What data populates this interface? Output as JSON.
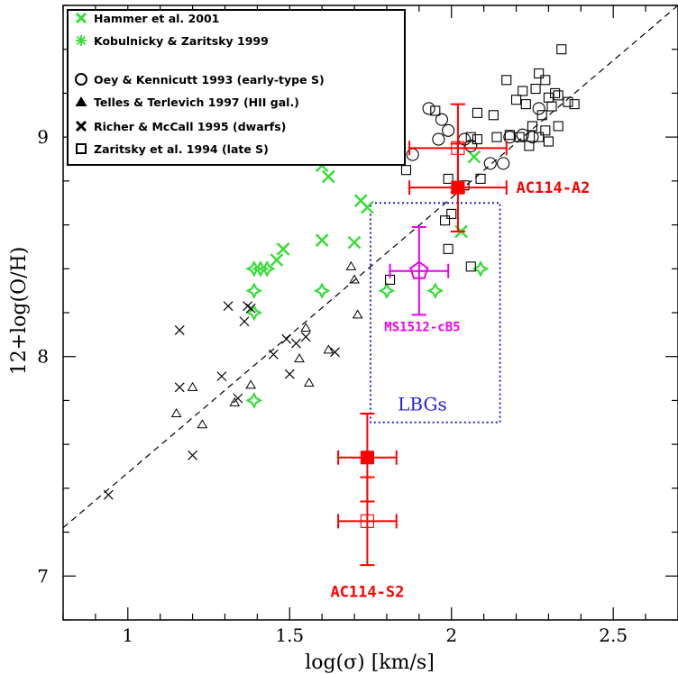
{
  "chart_data": {
    "type": "scatter",
    "xlabel": "log(σ) [km/s]",
    "ylabel": "12+log(O/H)",
    "xlim": [
      0.8,
      2.7
    ],
    "ylim": [
      6.8,
      9.6
    ],
    "xticks": [
      1,
      1.5,
      2,
      2.5
    ],
    "xtick_labels": [
      "1",
      "1.5",
      "2",
      "2.5"
    ],
    "yticks": [
      7,
      8,
      9
    ],
    "ytick_labels": [
      "7",
      "8",
      "9"
    ],
    "legend": [
      {
        "label": "Hammer et al. 2001",
        "marker": "x-bold",
        "color": "#33dd33"
      },
      {
        "label": "Kobulnicky & Zaritsky 1999",
        "marker": "star4",
        "color": "#33dd33"
      },
      {
        "label": "Oey & Kennicutt 1993 (early-type S)",
        "marker": "circle",
        "color": "#000000"
      },
      {
        "label": "Telles & Terlevich 1997 (HII gal.)",
        "marker": "triangle-filled",
        "color": "#000000"
      },
      {
        "label": "Richer & McCall 1995 (dwarfs)",
        "marker": "x-bold",
        "color": "#000000"
      },
      {
        "label": "Zaritsky et al. 1994 (late S)",
        "marker": "square",
        "color": "#000000"
      }
    ],
    "fit_line": {
      "from": [
        0.8,
        7.22
      ],
      "to": [
        2.7,
        9.6
      ],
      "style": "dashed"
    },
    "series": [
      {
        "name": "Hammer et al. 2001",
        "marker": "x",
        "color": "#33dd33",
        "points": [
          [
            1.6,
            8.87
          ],
          [
            1.62,
            8.82
          ],
          [
            1.72,
            8.71
          ],
          [
            1.74,
            8.68
          ],
          [
            1.6,
            8.53
          ],
          [
            1.7,
            8.52
          ],
          [
            1.48,
            8.49
          ],
          [
            1.46,
            8.44
          ],
          [
            2.07,
            8.91
          ],
          [
            2.03,
            8.57
          ]
        ]
      },
      {
        "name": "Kobulnicky & Zaritsky 1999",
        "marker": "star4",
        "color": "#33dd33",
        "points": [
          [
            1.39,
            8.4
          ],
          [
            1.41,
            8.4
          ],
          [
            1.43,
            8.4
          ],
          [
            1.39,
            8.3
          ],
          [
            1.39,
            8.2
          ],
          [
            1.6,
            8.3
          ],
          [
            1.39,
            7.8
          ],
          [
            1.8,
            8.3
          ],
          [
            1.95,
            8.3
          ],
          [
            2.09,
            8.4
          ]
        ]
      },
      {
        "name": "Oey & Kennicutt 1993 (early-type S)",
        "marker": "circle",
        "color": "#000000",
        "points": [
          [
            1.88,
            8.92
          ],
          [
            1.93,
            9.13
          ],
          [
            1.99,
            9.03
          ],
          [
            2.06,
            8.96
          ],
          [
            2.04,
            8.99
          ],
          [
            2.18,
            9.0
          ],
          [
            2.22,
            9.01
          ],
          [
            2.25,
            9.0
          ],
          [
            2.27,
            9.13
          ],
          [
            2.16,
            8.88
          ],
          [
            2.12,
            8.88
          ],
          [
            1.97,
            9.08
          ],
          [
            1.96,
            8.99
          ]
        ]
      },
      {
        "name": "Telles & Terlevich 1997 (HII gal.)",
        "marker": "triangle",
        "color": "#000000",
        "points": [
          [
            1.15,
            7.74
          ],
          [
            1.2,
            7.86
          ],
          [
            1.23,
            7.69
          ],
          [
            1.33,
            7.79
          ],
          [
            1.38,
            7.87
          ],
          [
            1.53,
            7.99
          ],
          [
            1.55,
            8.13
          ],
          [
            1.56,
            7.88
          ],
          [
            1.62,
            8.03
          ],
          [
            1.69,
            8.41
          ],
          [
            1.71,
            8.19
          ],
          [
            1.7,
            8.35
          ]
        ]
      },
      {
        "name": "Richer & McCall 1995 (dwarfs)",
        "marker": "x",
        "color": "#000000",
        "points": [
          [
            0.94,
            7.37
          ],
          [
            1.16,
            7.86
          ],
          [
            1.2,
            7.55
          ],
          [
            1.29,
            7.91
          ],
          [
            1.31,
            8.23
          ],
          [
            1.34,
            7.81
          ],
          [
            1.36,
            8.16
          ],
          [
            1.37,
            8.23
          ],
          [
            1.38,
            8.22
          ],
          [
            1.45,
            8.01
          ],
          [
            1.49,
            8.08
          ],
          [
            1.5,
            7.92
          ],
          [
            1.52,
            8.06
          ],
          [
            1.55,
            8.09
          ],
          [
            1.64,
            8.02
          ],
          [
            1.16,
            8.12
          ]
        ]
      },
      {
        "name": "Zaritsky et al. 1994 (late S)",
        "marker": "square",
        "color": "#000000",
        "points": [
          [
            1.81,
            8.35
          ],
          [
            1.86,
            8.85
          ],
          [
            1.95,
            9.12
          ],
          [
            1.98,
            8.62
          ],
          [
            1.99,
            8.49
          ],
          [
            1.99,
            8.81
          ],
          [
            2.0,
            8.65
          ],
          [
            2.04,
            8.78
          ],
          [
            2.09,
            8.81
          ],
          [
            2.06,
            9.0
          ],
          [
            2.08,
            9.11
          ],
          [
            2.13,
            9.1
          ],
          [
            2.14,
            9.0
          ],
          [
            2.18,
            9.01
          ],
          [
            2.17,
            9.26
          ],
          [
            2.2,
            9.17
          ],
          [
            2.22,
            9.21
          ],
          [
            2.21,
            9.0
          ],
          [
            2.24,
            8.96
          ],
          [
            2.25,
            9.05
          ],
          [
            2.23,
            9.15
          ],
          [
            2.26,
            9.22
          ],
          [
            2.27,
            9.29
          ],
          [
            2.29,
            9.26
          ],
          [
            2.28,
            9.1
          ],
          [
            2.3,
            8.98
          ],
          [
            2.3,
            9.18
          ],
          [
            2.32,
            9.2
          ],
          [
            2.33,
            9.19
          ],
          [
            2.31,
            9.14
          ],
          [
            2.33,
            9.05
          ],
          [
            2.36,
            9.16
          ],
          [
            2.27,
            9.0
          ],
          [
            2.29,
            9.03
          ],
          [
            2.34,
            9.4
          ],
          [
            2.38,
            9.15
          ],
          [
            2.06,
            8.41
          ],
          [
            2.08,
            8.99
          ]
        ]
      }
    ],
    "error_points": [
      {
        "label_group": "AC114-A2",
        "x": 2.02,
        "y": 8.77,
        "xerr": [
          0.15,
          0.15
        ],
        "yerr": [
          0.2,
          0.2
        ],
        "marker": "square-filled",
        "color": "#ff0000"
      },
      {
        "label_group": "AC114-A2",
        "x": 2.02,
        "y": 8.95,
        "xerr": [
          0.15,
          0.15
        ],
        "yerr": [
          0.2,
          0.2
        ],
        "marker": "square",
        "color": "#ff0000"
      },
      {
        "label_group": "AC114-S2",
        "x": 1.74,
        "y": 7.54,
        "xerr": [
          0.09,
          0.09
        ],
        "yerr": [
          0.2,
          0.2
        ],
        "marker": "square-filled",
        "color": "#ff0000"
      },
      {
        "label_group": "AC114-S2",
        "x": 1.74,
        "y": 7.25,
        "xerr": [
          0.09,
          0.09
        ],
        "yerr": [
          0.2,
          0.2
        ],
        "marker": "square",
        "color": "#ff0000"
      },
      {
        "label_group": "MS1512-cB5",
        "x": 1.9,
        "y": 8.39,
        "xerr": [
          0.09,
          0.09
        ],
        "yerr": [
          0.2,
          0.2
        ],
        "marker": "pentagon",
        "color": "#ee00ee"
      }
    ],
    "region": {
      "label": "LBGs",
      "x": [
        1.75,
        2.15
      ],
      "y": [
        7.7,
        8.7
      ],
      "color": "#2222dd",
      "style": "dotted"
    },
    "annotations": [
      {
        "text": "AC114-A2",
        "x": 2.2,
        "y": 8.77,
        "color": "#ff0000"
      },
      {
        "text": "AC114-S2",
        "x": 1.74,
        "y": 6.93,
        "color": "#ff0000"
      },
      {
        "text": "MS1512-cB5",
        "x": 1.91,
        "y": 8.14,
        "color": "#ee00ee"
      },
      {
        "text": "LBGs",
        "x": 1.91,
        "y": 7.78,
        "color": "#2222dd"
      }
    ]
  }
}
